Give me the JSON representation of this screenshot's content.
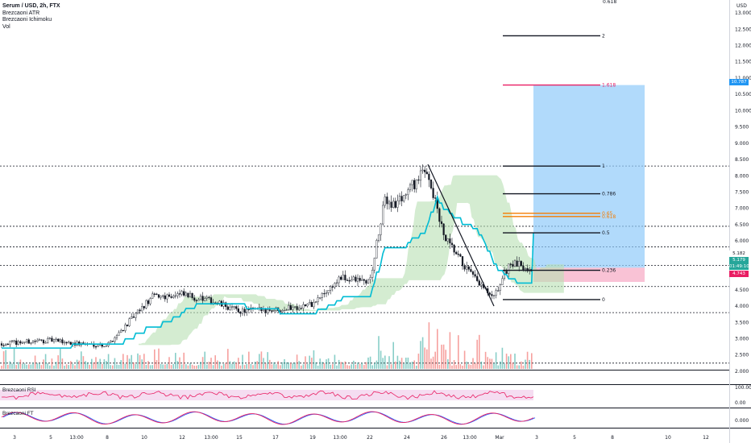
{
  "legend": {
    "title": "Serum / USD, 2h, FTX",
    "ind1": "Brezcaoni ATR",
    "ind2": "Brezcaoni Ichimoku",
    "ind3": "Vol"
  },
  "axis": {
    "currency": "USD",
    "top_partial": "0.618",
    "price_ticks": [
      "13.000",
      "12.500",
      "12.000",
      "11.500",
      "11.000",
      "10.500",
      "10.000",
      "9.500",
      "9.000",
      "8.500",
      "8.000",
      "7.500",
      "7.000",
      "6.500",
      "6.000",
      "5.500",
      "5.000",
      "4.500",
      "4.000",
      "3.500",
      "3.000",
      "2.500",
      "2.000"
    ],
    "rsi_ticks": [
      "100.00",
      "0.00"
    ],
    "ft_ticks": [
      "0.000"
    ],
    "time_ticks": [
      "3",
      "5",
      "13:00",
      "8",
      "10",
      "12",
      "13:00",
      "15",
      "17",
      "19",
      "13:00",
      "22",
      "24",
      "26",
      "13:00",
      "Mar",
      "3",
      "5",
      "8",
      "10",
      "12"
    ]
  },
  "badges": {
    "target": "10.787",
    "last": "5.179",
    "countdown": "01:49:10",
    "stop": "4.743",
    "price_above": "5.182"
  },
  "colors": {
    "up_candle": "#26a69a",
    "down_candle": "#ef5350",
    "kijun": "#00bcd4",
    "cloud": "#b8e0b3",
    "target_zone": "#90caf9",
    "stop_zone": "#f8bbd0",
    "fib_target": "#e91e63",
    "fib_orange": "#f57c00",
    "rsi_line": "#e91e63",
    "rsi_band": "#f3d5ee",
    "ft_line_a": "#e91e63",
    "ft_line_b": "#2962ff"
  },
  "panes": {
    "rsi_label": "Brezcaoni RSI",
    "ft_label": "Brezcaoni FT"
  },
  "chart_data": {
    "type": "candlestick",
    "symbol": "Serum / USD",
    "interval": "2h",
    "exchange": "FTX",
    "ylim": [
      1.8,
      13.2
    ],
    "close_path": [
      {
        "t": "3",
        "v": 2.85
      },
      {
        "t": "5",
        "v": 2.95
      },
      {
        "t": "13:00",
        "v": 2.85
      },
      {
        "t": "8",
        "v": 2.8
      },
      {
        "t": "10",
        "v": 4.3
      },
      {
        "t": "12",
        "v": 4.35
      },
      {
        "t": "13:00",
        "v": 4.15
      },
      {
        "t": "15",
        "v": 3.85
      },
      {
        "t": "17",
        "v": 3.9
      },
      {
        "t": "19",
        "v": 4.05
      },
      {
        "t": "13:00",
        "v": 4.85
      },
      {
        "t": "22",
        "v": 4.75
      },
      {
        "t": "22.5",
        "v": 7.3
      },
      {
        "t": "24",
        "v": 7.1
      },
      {
        "t": "24.5",
        "v": 8.2
      },
      {
        "t": "26",
        "v": 6.1
      },
      {
        "t": "13:00",
        "v": 5.0
      },
      {
        "t": "27.5",
        "v": 4.2
      },
      {
        "t": "Mar",
        "v": 5.3
      },
      {
        "t": "Mar+",
        "v": 5.18
      }
    ],
    "fib_levels": [
      {
        "label": "2",
        "price": 12.3
      },
      {
        "label": "1.618",
        "price": 10.787
      },
      {
        "label": "1",
        "price": 8.3
      },
      {
        "label": "0.786",
        "price": 7.45
      },
      {
        "label": "0.65",
        "price": 6.85
      },
      {
        "label": "0.618",
        "price": 6.75
      },
      {
        "label": "0.5",
        "price": 6.25
      },
      {
        "label": "0.236",
        "price": 5.1
      },
      {
        "label": "0",
        "price": 4.2
      }
    ],
    "horizontal_levels": [
      8.3,
      6.45,
      5.82,
      5.25,
      4.6,
      3.8,
      2.25
    ],
    "trendline": {
      "from_price": 8.35,
      "to_price": 4.0
    },
    "position": {
      "entry": 5.179,
      "target": 10.787,
      "stop": 4.743
    }
  }
}
